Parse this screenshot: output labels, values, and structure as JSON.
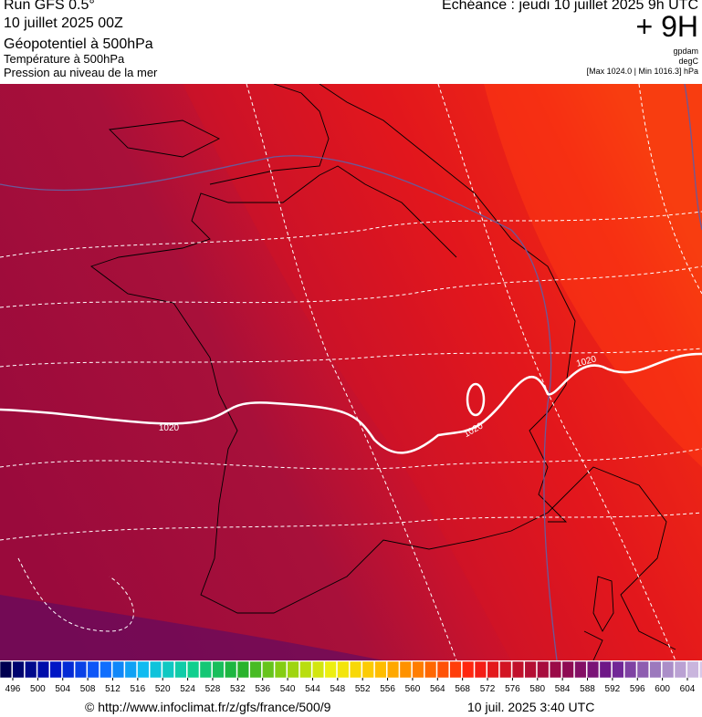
{
  "header": {
    "run": "Run GFS 0.5°",
    "date": "10 juillet 2025 00Z",
    "field_1": "Géopotentiel à 500hPa",
    "field_2": "Température à 500hPa",
    "field_3": "Pression au niveau de la mer",
    "echeance": "Echéance : jeudi 10 juillet 2025 9h UTC",
    "lead": "+ 9H",
    "unit_1": "gpdam",
    "unit_2": "degC",
    "range": "[Max 1024.0 | Min 1016.3] hPa"
  },
  "map": {
    "isobar_labels": [
      "1020",
      "1020",
      "1020"
    ]
  },
  "scale": {
    "ticks": [
      496,
      500,
      504,
      508,
      512,
      516,
      520,
      524,
      528,
      532,
      536,
      540,
      544,
      548,
      552,
      556,
      560,
      564,
      568,
      572,
      576,
      580,
      584,
      588,
      592,
      596,
      600,
      604
    ]
  },
  "footer": {
    "source": "© http://www.infoclimat.fr/z/gfs/france/500/9",
    "time": "10 juil. 2025  3:40 UTC"
  }
}
